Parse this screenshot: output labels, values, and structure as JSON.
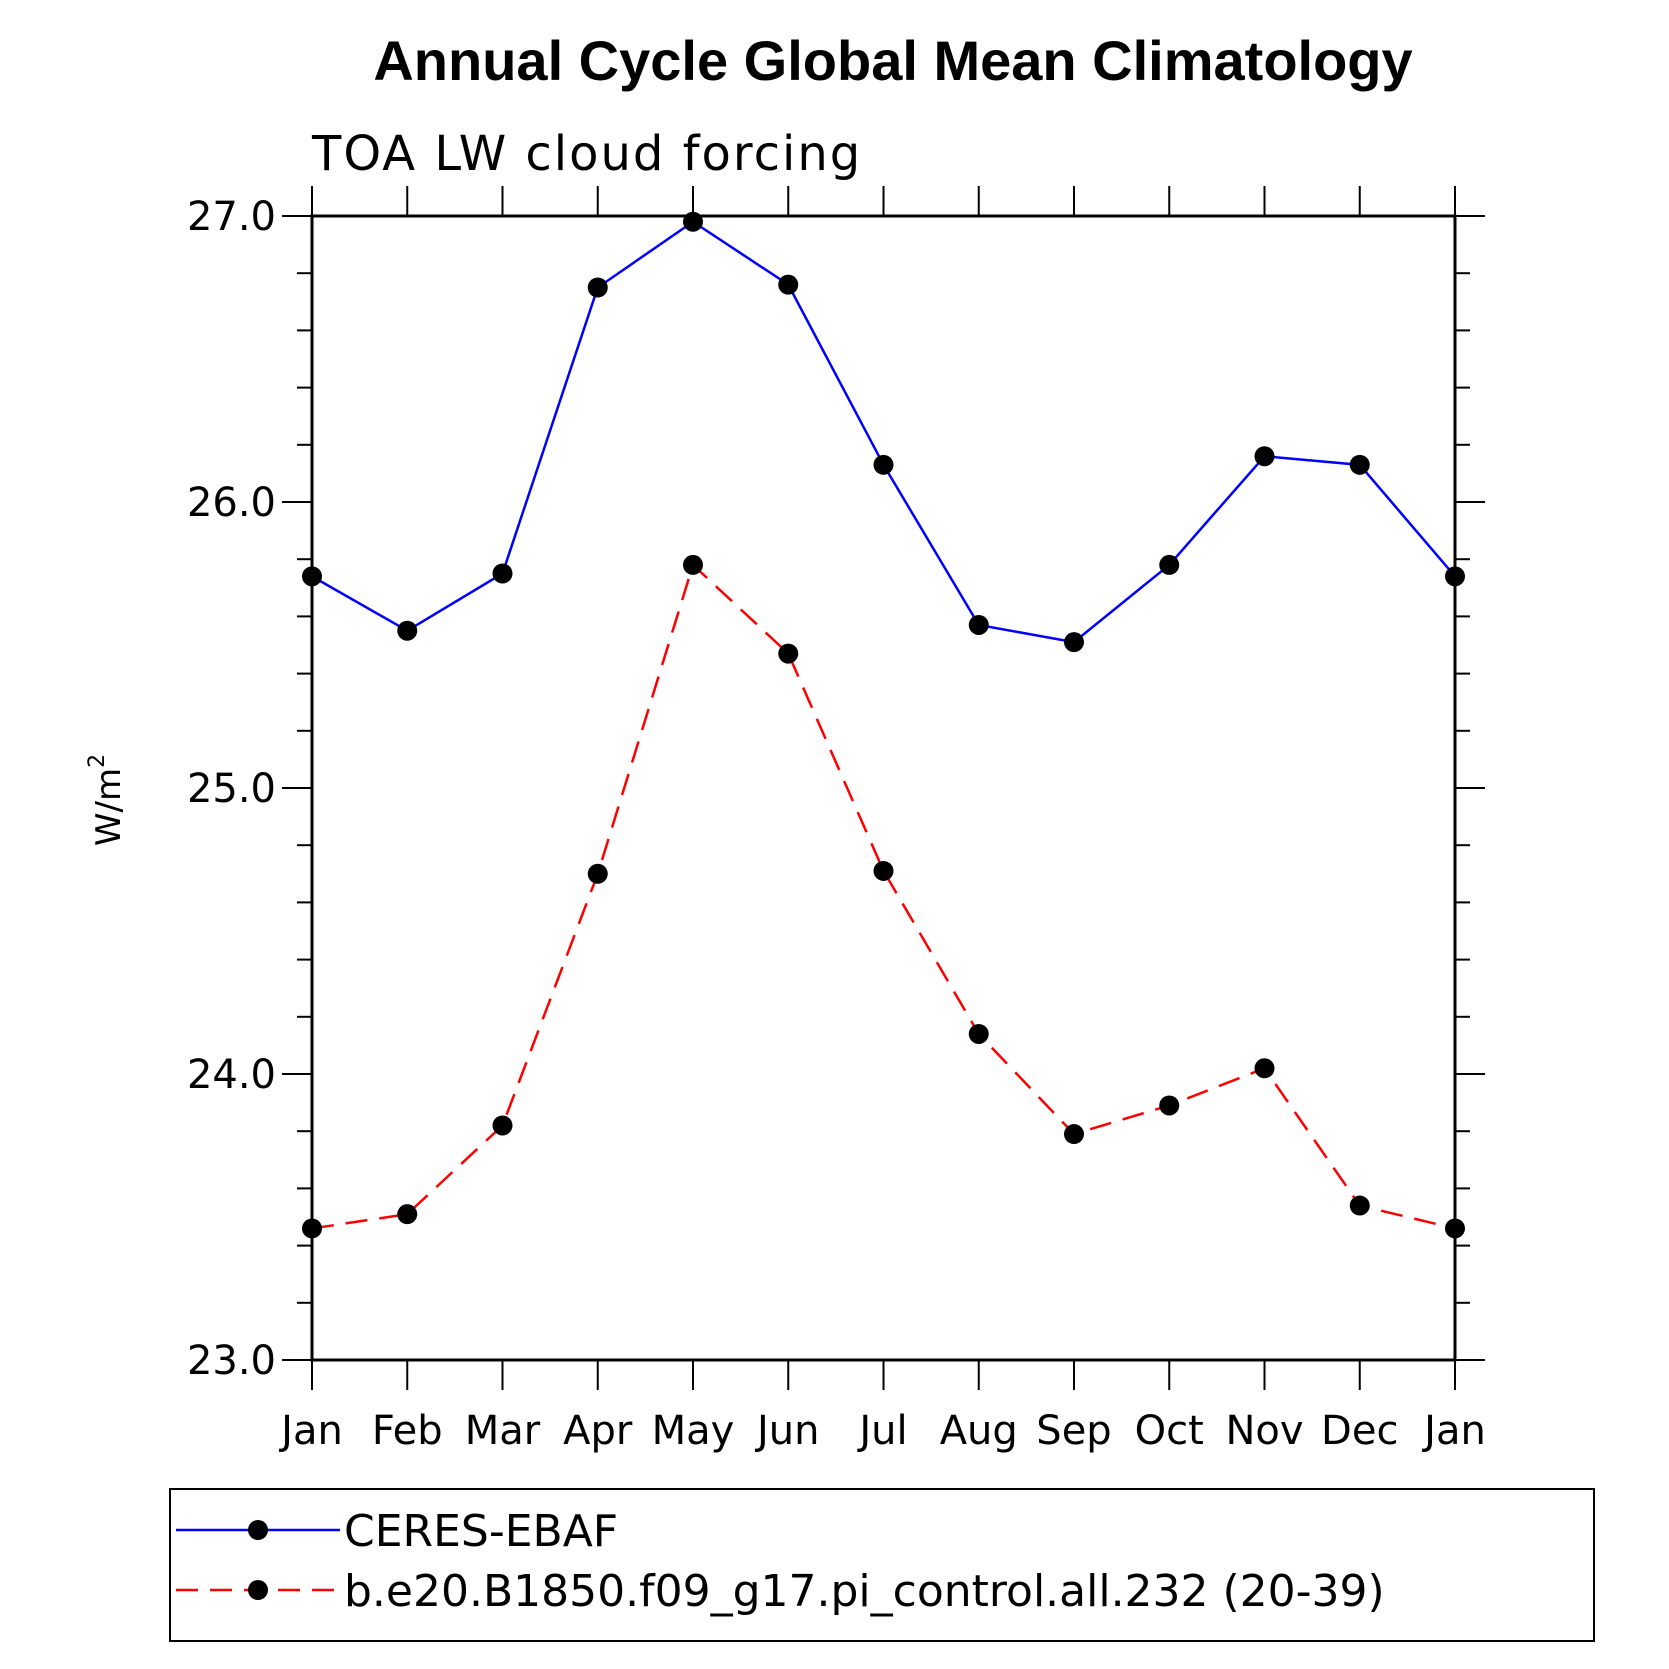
{
  "chart_data": {
    "type": "line",
    "title": "Annual Cycle Global Mean Climatology",
    "subtitle": "TOA LW cloud forcing",
    "ylabel": "W/m",
    "ylabel_superscript": "2",
    "ylim": [
      23.0,
      27.0
    ],
    "yticks": [
      "23.0",
      "24.0",
      "25.0",
      "26.0",
      "27.0"
    ],
    "categories": [
      "Jan",
      "Feb",
      "Mar",
      "Apr",
      "May",
      "Jun",
      "Jul",
      "Aug",
      "Sep",
      "Oct",
      "Nov",
      "Dec",
      "Jan"
    ],
    "grid": false,
    "legend_position": "bottom",
    "series": [
      {
        "name": "CERES-EBAF",
        "color": "#0000ff",
        "dash": "solid",
        "marker": "filled-circle",
        "values": [
          25.74,
          25.55,
          25.75,
          26.75,
          26.98,
          26.76,
          26.13,
          25.57,
          25.51,
          25.78,
          26.16,
          26.13,
          25.74
        ]
      },
      {
        "name": "b.e20.B1850.f09_g17.pi_control.all.232 (20-39)",
        "color": "#ff0000",
        "dash": "dashed",
        "marker": "filled-circle",
        "values": [
          23.46,
          23.51,
          23.82,
          24.7,
          25.78,
          25.47,
          24.71,
          24.14,
          23.79,
          23.89,
          24.02,
          23.54,
          23.46
        ]
      }
    ]
  }
}
